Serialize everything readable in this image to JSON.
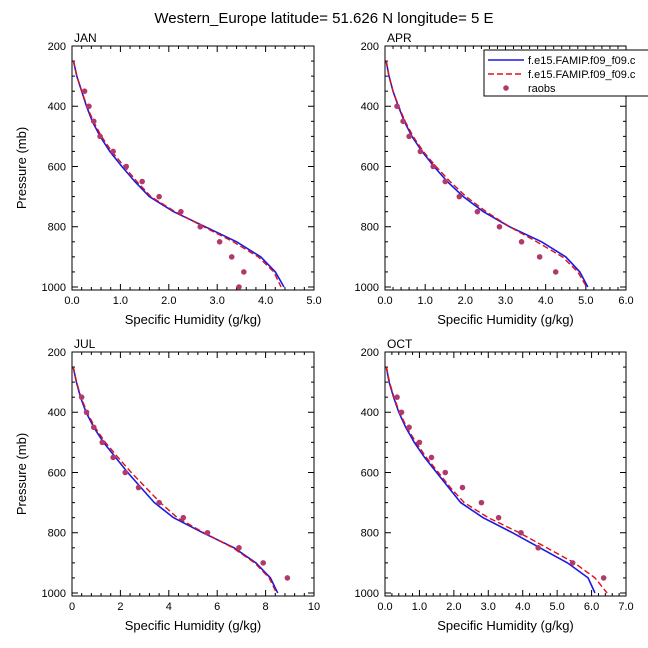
{
  "figure_title": "Western_Europe  latitude= 51.626 N longitude= 5 E",
  "colors": {
    "series1": "#1a1ae6",
    "series2": "#e01010",
    "raobs": "#b03a6e"
  },
  "chart_data": [
    {
      "type": "line",
      "panel_label": "JAN",
      "xlabel": "Specific Humidity (g/kg)",
      "ylabel": "Pressure (mb)",
      "xlim": [
        0,
        5
      ],
      "xticks": [
        0,
        1,
        2,
        3,
        4,
        5
      ],
      "xtick_labels": [
        "0.0",
        "1.0",
        "2.0",
        "3.0",
        "4.0",
        "5.0"
      ],
      "ylim": [
        1000,
        200
      ],
      "yticks": [
        200,
        400,
        600,
        800,
        1000
      ],
      "series": [
        {
          "p": [
            250,
            300,
            350,
            400,
            450,
            500,
            550,
            600,
            650,
            700,
            750,
            800,
            850,
            900,
            950,
            1000
          ],
          "q": [
            0.03,
            0.1,
            0.2,
            0.3,
            0.42,
            0.58,
            0.78,
            1.03,
            1.3,
            1.6,
            2.1,
            2.75,
            3.4,
            3.9,
            4.2,
            4.38
          ]
        },
        {
          "p": [
            250,
            300,
            350,
            400,
            450,
            500,
            550,
            600,
            650,
            700,
            750,
            800,
            850,
            900,
            950,
            1000
          ],
          "q": [
            0.03,
            0.1,
            0.2,
            0.31,
            0.44,
            0.61,
            0.82,
            1.08,
            1.34,
            1.63,
            2.13,
            2.72,
            3.33,
            3.85,
            4.17,
            4.32
          ]
        },
        {
          "p": [
            350,
            400,
            450,
            500,
            550,
            600,
            650,
            700,
            750,
            800,
            850,
            900,
            950,
            1000
          ],
          "q": [
            0.26,
            0.35,
            0.45,
            0.58,
            0.85,
            1.12,
            1.45,
            1.8,
            2.25,
            2.65,
            3.05,
            3.3,
            3.55,
            3.45
          ]
        }
      ]
    },
    {
      "type": "line",
      "panel_label": "APR",
      "xlabel": "Specific Humidity (g/kg)",
      "ylabel": "",
      "xlim": [
        0,
        6
      ],
      "xticks": [
        0,
        1,
        2,
        3,
        4,
        5,
        6
      ],
      "xtick_labels": [
        "0.0",
        "1.0",
        "2.0",
        "3.0",
        "4.0",
        "5.0",
        "6.0"
      ],
      "ylim": [
        1000,
        200
      ],
      "yticks": [
        200,
        400,
        600,
        800,
        1000
      ],
      "series": [
        {
          "name": "f.e15.FAMIP.f09_f09.c",
          "p": [
            250,
            300,
            350,
            400,
            450,
            500,
            550,
            600,
            650,
            700,
            750,
            800,
            850,
            900,
            950,
            1000
          ],
          "q": [
            0.03,
            0.1,
            0.2,
            0.33,
            0.48,
            0.67,
            0.92,
            1.22,
            1.55,
            1.95,
            2.45,
            3.1,
            3.9,
            4.5,
            4.85,
            5.05
          ]
        },
        {
          "name": "f.e15.FAMIP.f09_f09.c",
          "p": [
            250,
            300,
            350,
            400,
            450,
            500,
            550,
            600,
            650,
            700,
            750,
            800,
            850,
            900,
            950,
            1000
          ],
          "q": [
            0.03,
            0.1,
            0.2,
            0.34,
            0.5,
            0.7,
            0.95,
            1.27,
            1.62,
            2.02,
            2.52,
            3.1,
            3.78,
            4.42,
            4.8,
            5.02
          ]
        },
        {
          "name": "raobs",
          "p": [
            400,
            450,
            500,
            550,
            600,
            650,
            700,
            750,
            800,
            850,
            900,
            950
          ],
          "q": [
            0.3,
            0.45,
            0.6,
            0.88,
            1.2,
            1.5,
            1.85,
            2.3,
            2.85,
            3.4,
            3.85,
            4.25
          ]
        }
      ]
    },
    {
      "type": "line",
      "panel_label": "JUL",
      "xlabel": "Specific Humidity (g/kg)",
      "ylabel": "Pressure (mb)",
      "xlim": [
        0,
        10
      ],
      "xticks": [
        0,
        2,
        4,
        6,
        8,
        10
      ],
      "xtick_labels": [
        "0",
        "2",
        "4",
        "6",
        "8",
        "10"
      ],
      "ylim": [
        1000,
        200
      ],
      "yticks": [
        200,
        400,
        600,
        800,
        1000
      ],
      "series": [
        {
          "p": [
            250,
            300,
            350,
            400,
            450,
            500,
            550,
            600,
            650,
            700,
            750,
            800,
            850,
            900,
            950,
            1000
          ],
          "q": [
            0.05,
            0.18,
            0.35,
            0.58,
            0.9,
            1.3,
            1.8,
            2.3,
            2.85,
            3.4,
            4.2,
            5.4,
            6.7,
            7.6,
            8.2,
            8.5
          ]
        },
        {
          "p": [
            250,
            300,
            350,
            400,
            450,
            500,
            550,
            600,
            650,
            700,
            750,
            800,
            850,
            900,
            950,
            1000
          ],
          "q": [
            0.05,
            0.19,
            0.37,
            0.62,
            0.95,
            1.38,
            1.9,
            2.45,
            3.05,
            3.65,
            4.35,
            5.45,
            6.65,
            7.55,
            8.15,
            8.45
          ]
        },
        {
          "p": [
            350,
            400,
            450,
            500,
            550,
            600,
            650,
            700,
            750,
            800,
            850,
            900,
            950
          ],
          "q": [
            0.4,
            0.6,
            0.9,
            1.25,
            1.7,
            2.2,
            2.75,
            3.6,
            4.6,
            5.6,
            6.9,
            7.9,
            8.9
          ]
        }
      ]
    },
    {
      "type": "line",
      "panel_label": "OCT",
      "xlabel": "Specific Humidity (g/kg)",
      "ylabel": "",
      "xlim": [
        0,
        7
      ],
      "xticks": [
        0,
        1,
        2,
        3,
        4,
        5,
        6,
        7
      ],
      "xtick_labels": [
        "0.0",
        "1.0",
        "2.0",
        "3.0",
        "4.0",
        "5.0",
        "6.0",
        "7.0"
      ],
      "ylim": [
        1000,
        200
      ],
      "yticks": [
        200,
        400,
        600,
        800,
        1000
      ],
      "series": [
        {
          "p": [
            250,
            300,
            350,
            400,
            450,
            500,
            550,
            600,
            650,
            700,
            750,
            800,
            850,
            900,
            950,
            1000
          ],
          "q": [
            0.04,
            0.12,
            0.25,
            0.4,
            0.6,
            0.85,
            1.15,
            1.5,
            1.85,
            2.2,
            2.85,
            3.7,
            4.5,
            5.3,
            5.9,
            6.1
          ]
        },
        {
          "p": [
            250,
            300,
            350,
            400,
            450,
            500,
            550,
            600,
            650,
            700,
            750,
            800,
            850,
            900,
            950,
            1000
          ],
          "q": [
            0.04,
            0.13,
            0.26,
            0.42,
            0.63,
            0.9,
            1.2,
            1.55,
            1.9,
            2.3,
            3.0,
            3.9,
            4.7,
            5.5,
            6.1,
            6.45
          ]
        },
        {
          "p": [
            350,
            400,
            450,
            500,
            550,
            600,
            650,
            700,
            750,
            800,
            850,
            900,
            950
          ],
          "q": [
            0.35,
            0.48,
            0.7,
            1.0,
            1.35,
            1.75,
            2.25,
            2.8,
            3.3,
            3.95,
            4.45,
            5.45,
            6.35
          ]
        }
      ]
    }
  ]
}
